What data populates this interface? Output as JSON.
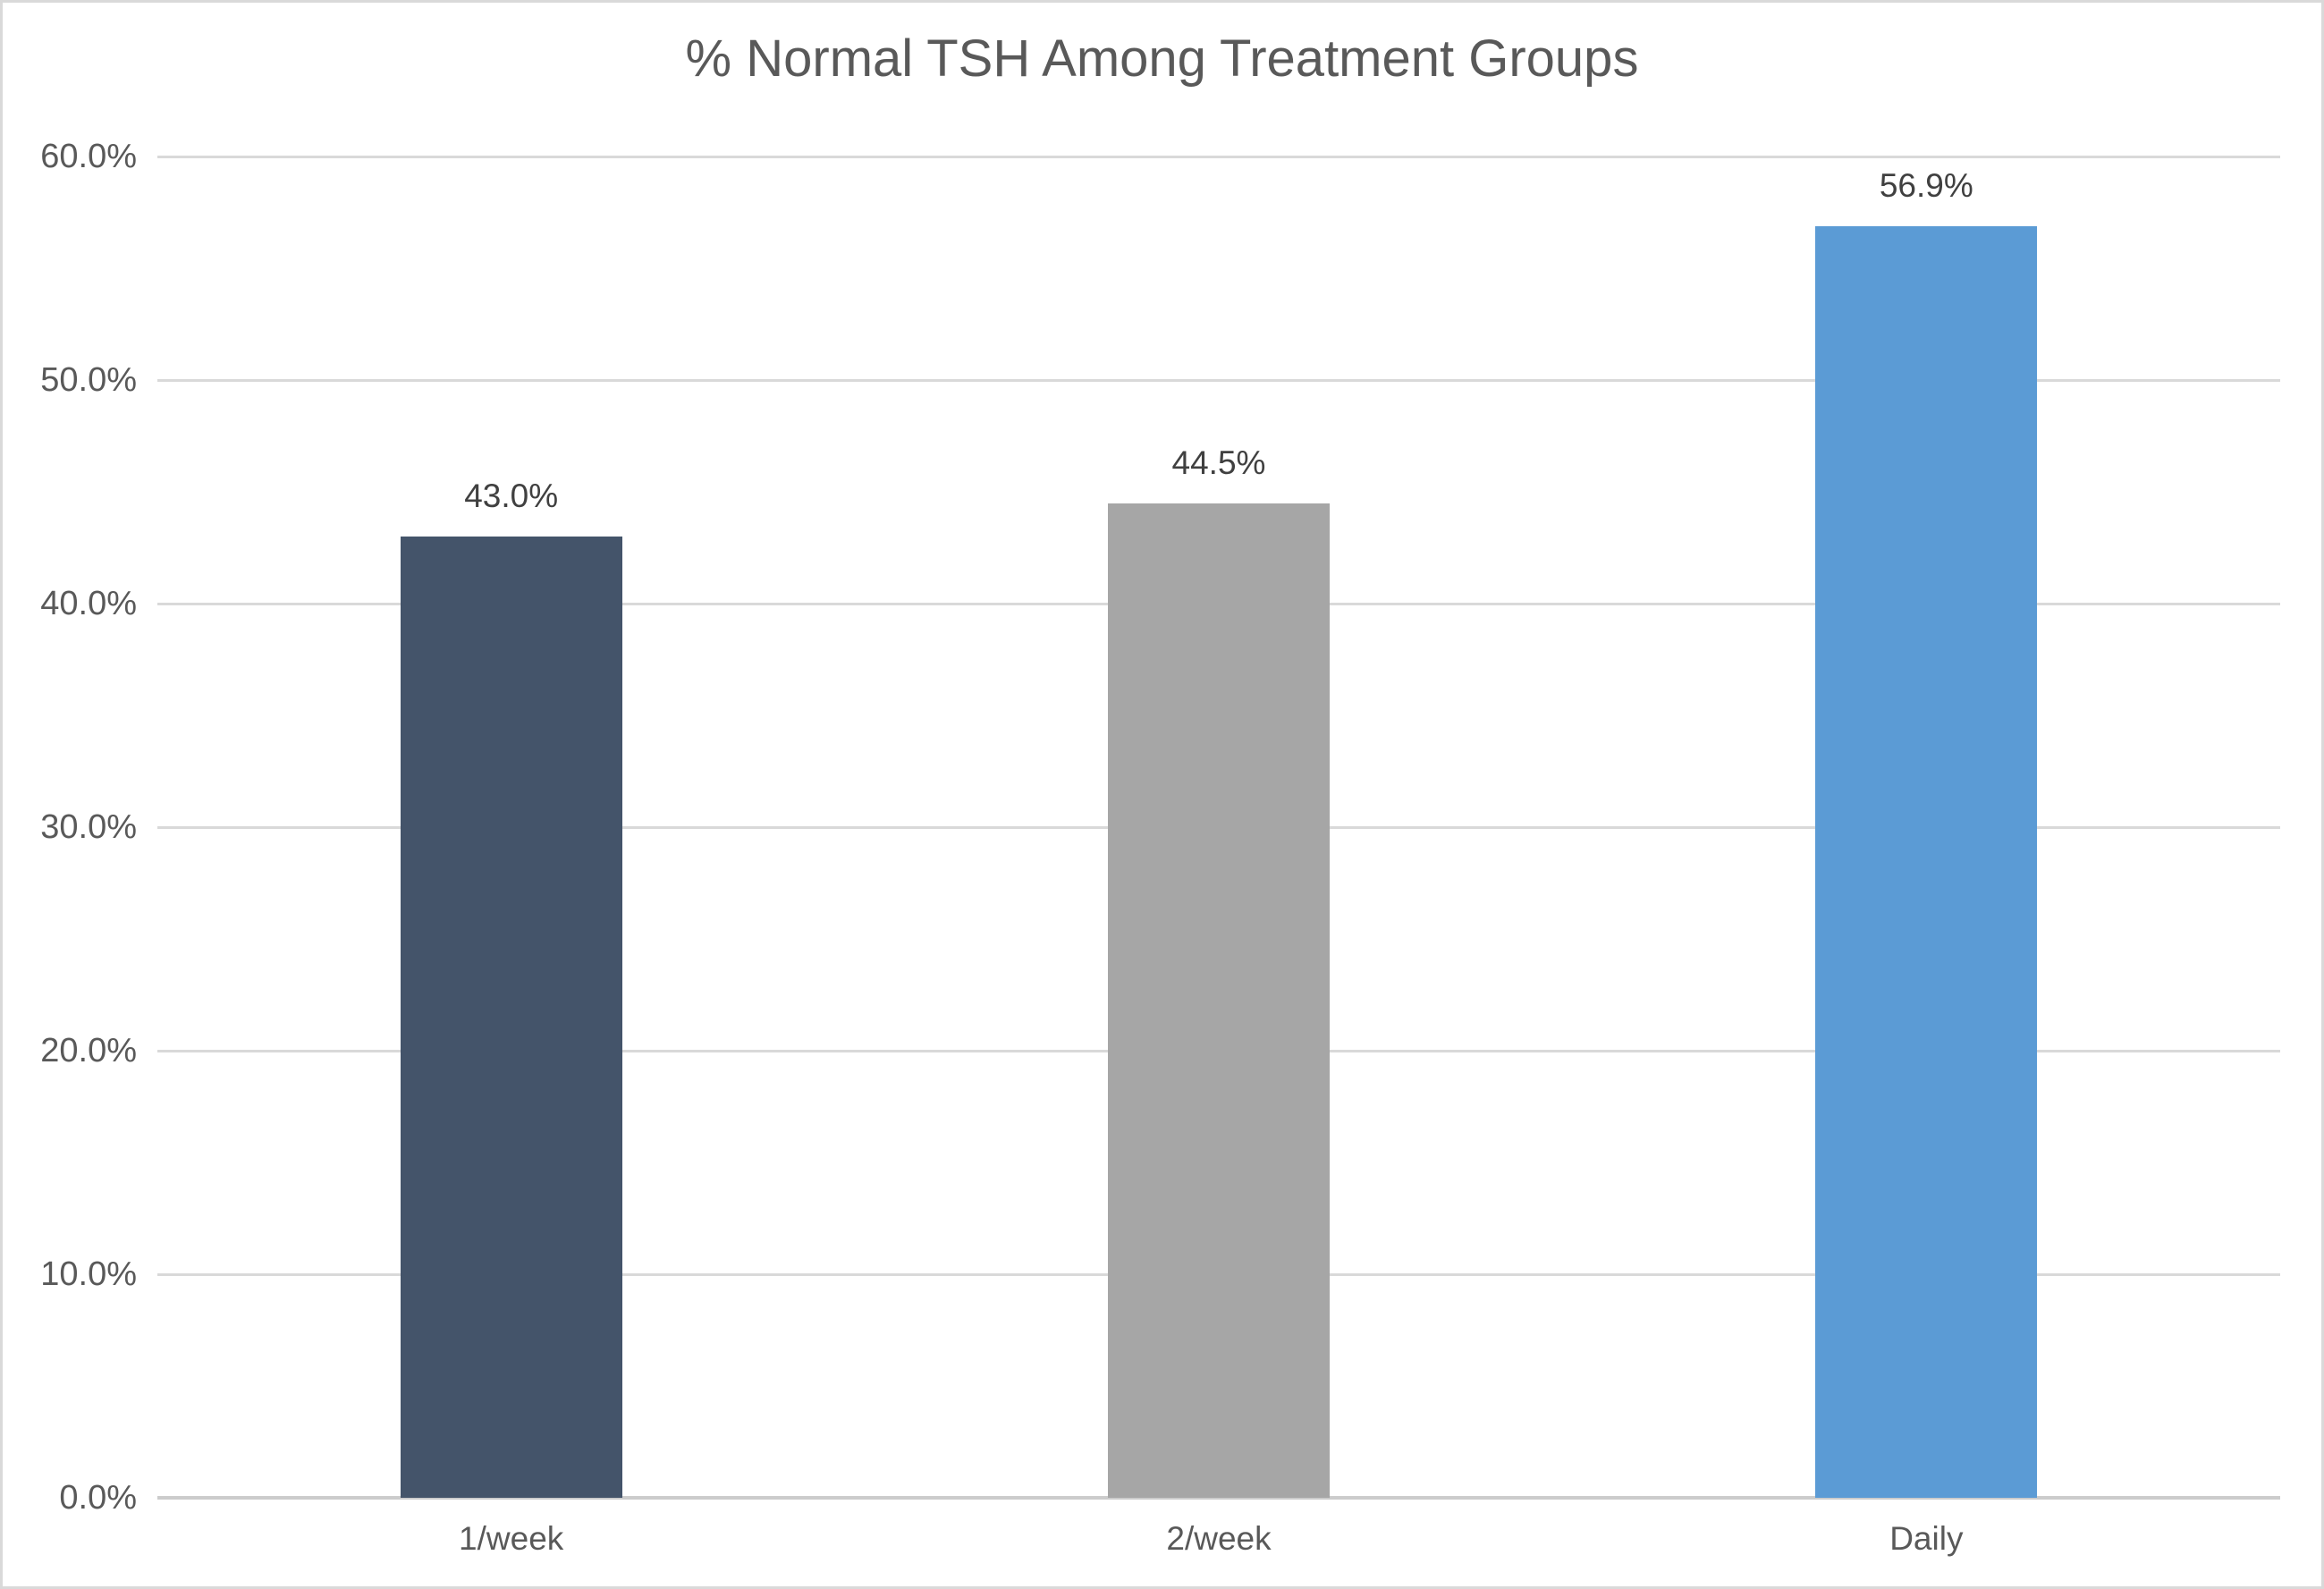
{
  "chart_data": {
    "type": "bar",
    "title": "% Normal TSH Among Treatment Groups",
    "categories": [
      "1/week",
      "2/week",
      "Daily"
    ],
    "values": [
      43.0,
      44.5,
      56.9
    ],
    "value_labels": [
      "43.0%",
      "44.5%",
      "56.9%"
    ],
    "bar_colors": [
      "#44546A",
      "#A6A6A6",
      "#5B9BD5"
    ],
    "xlabel": "",
    "ylabel": "",
    "ylim": [
      0,
      60
    ],
    "yticks": [
      0,
      10,
      20,
      30,
      40,
      50,
      60
    ],
    "ytick_labels": [
      "0.0%",
      "10.0%",
      "20.0%",
      "30.0%",
      "40.0%",
      "50.0%",
      "60.0%"
    ],
    "grid": true,
    "legend": "none"
  },
  "colors": {
    "background": "#FFFFFF",
    "chart_border": "#D9D9D9",
    "gridline": "#D9D9D9",
    "axis_line": "#CCCCCC",
    "title_text": "#595959",
    "tick_text": "#595959",
    "data_label_text": "#404040"
  }
}
